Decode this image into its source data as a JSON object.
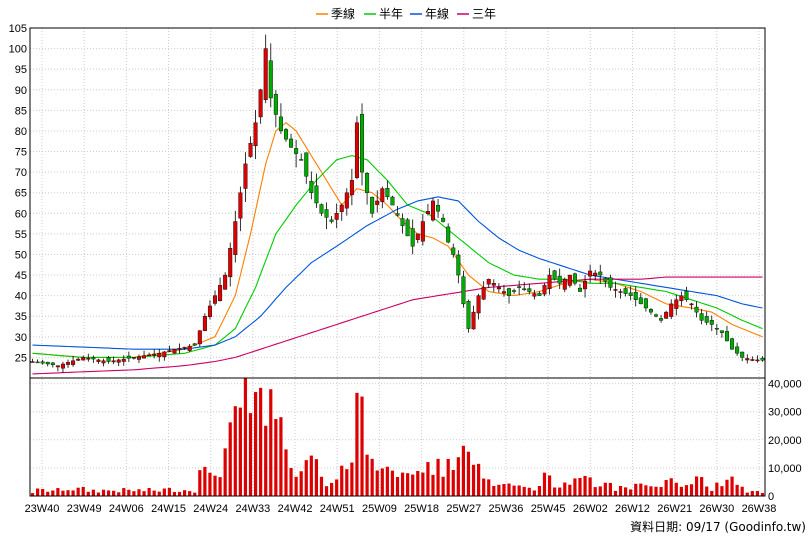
{
  "chart_data": {
    "type": "candlestick",
    "legend": [
      {
        "name": "季線",
        "color": "#ff7f00"
      },
      {
        "name": "半年",
        "color": "#00cc00"
      },
      {
        "name": "年線",
        "color": "#0055dd"
      },
      {
        "name": "三年",
        "color": "#cc0066"
      }
    ],
    "colors": {
      "up": "#dd0000",
      "down": "#00aa00",
      "volume": "#dd0000",
      "grid": "#cccccc",
      "frame": "#000000"
    },
    "x_labels": [
      "23W40",
      "23W49",
      "24W06",
      "24W15",
      "24W24",
      "24W33",
      "24W42",
      "24W51",
      "25W09",
      "25W18",
      "25W27",
      "25W36",
      "25W45",
      "26W02",
      "26W12",
      "26W21",
      "26W30",
      "26W38"
    ],
    "price_axis": {
      "range": [
        20,
        105
      ],
      "ticks": [
        25,
        30,
        35,
        40,
        45,
        50,
        55,
        60,
        65,
        70,
        75,
        80,
        85,
        90,
        95,
        100,
        105
      ]
    },
    "volume_axis": {
      "range": [
        0,
        42000
      ],
      "ticks": [
        0,
        10000,
        20000,
        30000,
        40000
      ],
      "tick_labels": [
        "0",
        "10,000",
        "20,000",
        "30,000",
        "40,000"
      ]
    },
    "footer": "資料日期: 09/17  (Goodinfo.tw)",
    "anchors": {
      "close": [
        [
          0,
          24
        ],
        [
          5,
          23
        ],
        [
          10,
          25
        ],
        [
          15,
          24
        ],
        [
          20,
          25
        ],
        [
          25,
          26
        ],
        [
          28,
          27
        ],
        [
          32,
          28
        ],
        [
          34,
          35
        ],
        [
          36,
          40
        ],
        [
          38,
          45
        ],
        [
          40,
          58
        ],
        [
          42,
          72
        ],
        [
          44,
          82
        ],
        [
          45,
          90
        ],
        [
          46,
          100
        ],
        [
          47,
          88
        ],
        [
          49,
          80
        ],
        [
          51,
          76
        ],
        [
          53,
          73
        ],
        [
          55,
          65
        ],
        [
          57,
          60
        ],
        [
          59,
          58
        ],
        [
          61,
          62
        ],
        [
          63,
          68
        ],
        [
          64,
          82
        ],
        [
          65,
          70
        ],
        [
          67,
          60
        ],
        [
          69,
          66
        ],
        [
          71,
          62
        ],
        [
          73,
          57
        ],
        [
          75,
          52
        ],
        [
          77,
          58
        ],
        [
          79,
          63
        ],
        [
          81,
          58
        ],
        [
          82,
          53
        ],
        [
          83,
          50
        ],
        [
          84,
          45
        ],
        [
          85,
          38
        ],
        [
          86,
          32
        ],
        [
          87,
          36
        ],
        [
          88,
          40
        ],
        [
          90,
          44
        ],
        [
          92,
          42
        ],
        [
          94,
          40
        ],
        [
          96,
          42
        ],
        [
          98,
          41
        ],
        [
          100,
          40
        ],
        [
          102,
          45
        ],
        [
          104,
          43
        ],
        [
          106,
          45
        ],
        [
          108,
          41
        ],
        [
          110,
          46
        ],
        [
          112,
          45
        ],
        [
          114,
          42
        ],
        [
          116,
          41
        ],
        [
          118,
          40
        ],
        [
          120,
          38
        ],
        [
          122,
          36
        ],
        [
          124,
          34
        ],
        [
          126,
          38
        ],
        [
          128,
          40
        ],
        [
          130,
          38
        ],
        [
          132,
          34
        ],
        [
          134,
          33
        ],
        [
          136,
          31
        ],
        [
          138,
          27
        ],
        [
          140,
          25
        ],
        [
          142,
          24.5
        ],
        [
          144,
          24.3
        ]
      ],
      "ma_quarter": [
        [
          0,
          26
        ],
        [
          10,
          25
        ],
        [
          20,
          25
        ],
        [
          30,
          27
        ],
        [
          36,
          30
        ],
        [
          40,
          40
        ],
        [
          43,
          55
        ],
        [
          46,
          72
        ],
        [
          48,
          80
        ],
        [
          50,
          82
        ],
        [
          52,
          80
        ],
        [
          55,
          74
        ],
        [
          58,
          68
        ],
        [
          61,
          62
        ],
        [
          64,
          66
        ],
        [
          67,
          65
        ],
        [
          70,
          62
        ],
        [
          73,
          58
        ],
        [
          76,
          55
        ],
        [
          79,
          54
        ],
        [
          82,
          52
        ],
        [
          86,
          45
        ],
        [
          90,
          41
        ],
        [
          95,
          40
        ],
        [
          100,
          41
        ],
        [
          105,
          43
        ],
        [
          110,
          44
        ],
        [
          115,
          43
        ],
        [
          120,
          41
        ],
        [
          125,
          38
        ],
        [
          130,
          37
        ],
        [
          134,
          36
        ],
        [
          138,
          33
        ],
        [
          142,
          31
        ],
        [
          144,
          30
        ]
      ],
      "ma_half": [
        [
          0,
          26
        ],
        [
          10,
          25
        ],
        [
          20,
          25
        ],
        [
          30,
          26
        ],
        [
          36,
          28
        ],
        [
          40,
          32
        ],
        [
          44,
          42
        ],
        [
          48,
          55
        ],
        [
          52,
          62
        ],
        [
          56,
          68
        ],
        [
          60,
          73
        ],
        [
          63,
          74
        ],
        [
          66,
          73
        ],
        [
          70,
          68
        ],
        [
          74,
          62
        ],
        [
          78,
          60
        ],
        [
          82,
          56
        ],
        [
          86,
          52
        ],
        [
          90,
          48
        ],
        [
          95,
          45
        ],
        [
          100,
          44
        ],
        [
          105,
          44
        ],
        [
          110,
          43
        ],
        [
          115,
          43
        ],
        [
          120,
          42
        ],
        [
          125,
          41
        ],
        [
          130,
          39
        ],
        [
          135,
          37
        ],
        [
          140,
          34
        ],
        [
          144,
          32
        ]
      ],
      "ma_year": [
        [
          0,
          28
        ],
        [
          10,
          27.5
        ],
        [
          20,
          27
        ],
        [
          30,
          27
        ],
        [
          36,
          28
        ],
        [
          40,
          30
        ],
        [
          45,
          35
        ],
        [
          50,
          42
        ],
        [
          55,
          48
        ],
        [
          60,
          52
        ],
        [
          66,
          57
        ],
        [
          72,
          61
        ],
        [
          76,
          63
        ],
        [
          80,
          64
        ],
        [
          84,
          63
        ],
        [
          88,
          58
        ],
        [
          92,
          54
        ],
        [
          96,
          51
        ],
        [
          100,
          49
        ],
        [
          105,
          47
        ],
        [
          110,
          45
        ],
        [
          115,
          44
        ],
        [
          120,
          43
        ],
        [
          125,
          42
        ],
        [
          130,
          41
        ],
        [
          135,
          40
        ],
        [
          140,
          38
        ],
        [
          144,
          37
        ]
      ],
      "ma_3y": [
        [
          0,
          21
        ],
        [
          10,
          21.5
        ],
        [
          20,
          22
        ],
        [
          30,
          23
        ],
        [
          36,
          24
        ],
        [
          40,
          25
        ],
        [
          45,
          27
        ],
        [
          50,
          29
        ],
        [
          55,
          31
        ],
        [
          60,
          33
        ],
        [
          65,
          35
        ],
        [
          70,
          37
        ],
        [
          75,
          39
        ],
        [
          80,
          40
        ],
        [
          85,
          41
        ],
        [
          90,
          42
        ],
        [
          95,
          42.5
        ],
        [
          100,
          43
        ],
        [
          105,
          43.5
        ],
        [
          110,
          44
        ],
        [
          115,
          44
        ],
        [
          120,
          44
        ],
        [
          125,
          44.5
        ],
        [
          130,
          44.5
        ],
        [
          135,
          44.5
        ],
        [
          140,
          44.5
        ],
        [
          144,
          44.5
        ]
      ]
    }
  }
}
